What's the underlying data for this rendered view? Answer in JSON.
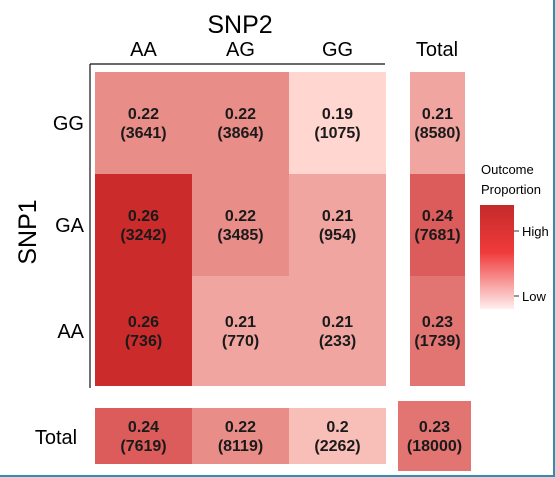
{
  "chart_data": {
    "type": "heatmap",
    "x_title": "SNP2",
    "y_title": "SNP1",
    "x_categories": [
      "AA",
      "AG",
      "GG"
    ],
    "y_categories": [
      "GG",
      "GA",
      "AA"
    ],
    "total_label": "Total",
    "cells": [
      [
        {
          "p": "0.22",
          "n": "(3641)"
        },
        {
          "p": "0.22",
          "n": "(3864)"
        },
        {
          "p": "0.19",
          "n": "(1075)"
        }
      ],
      [
        {
          "p": "0.26",
          "n": "(3242)"
        },
        {
          "p": "0.22",
          "n": "(3485)"
        },
        {
          "p": "0.21",
          "n": "(954)"
        }
      ],
      [
        {
          "p": "0.26",
          "n": "(736)"
        },
        {
          "p": "0.21",
          "n": "(770)"
        },
        {
          "p": "0.21",
          "n": "(233)"
        }
      ]
    ],
    "row_totals": [
      {
        "p": "0.21",
        "n": "(8580)"
      },
      {
        "p": "0.24",
        "n": "(7681)"
      },
      {
        "p": "0.23",
        "n": "(1739)"
      }
    ],
    "col_totals": [
      {
        "p": "0.24",
        "n": "(7619)"
      },
      {
        "p": "0.22",
        "n": "(8119)"
      },
      {
        "p": "0.2",
        "n": "(2262)"
      }
    ],
    "grand_total": {
      "p": "0.23",
      "n": "(18000)"
    },
    "legend": {
      "title_line1": "Outcome",
      "title_line2": "Proportion",
      "high_label": "High",
      "low_label": "Low",
      "colors": [
        "#c42a2a",
        "#f03a3a",
        "#ffeeee"
      ],
      "placement": "right"
    },
    "color_scale": {
      "min": 0.19,
      "max": 0.26,
      "low_color": "#ffd6d0",
      "high_color": "#cc2b2b"
    }
  }
}
